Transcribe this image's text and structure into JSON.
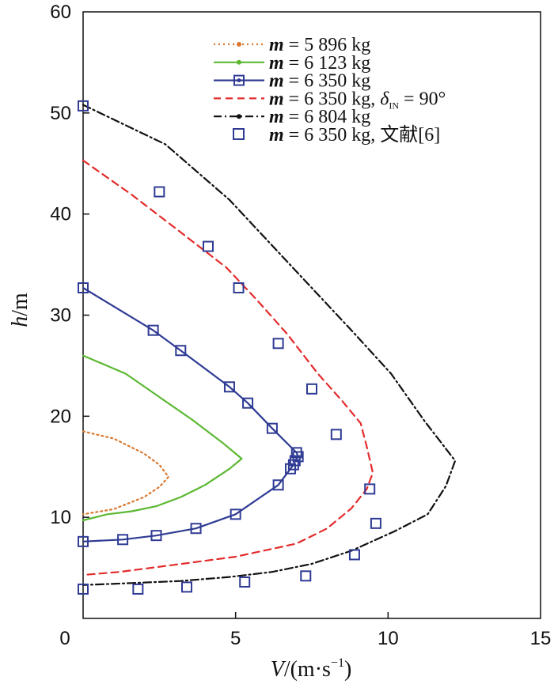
{
  "chart_data": {
    "type": "line",
    "xlabel_parts": [
      "V",
      "/(m·s",
      "−1",
      ")"
    ],
    "ylabel_parts": [
      "h",
      "/m"
    ],
    "xlim": [
      0,
      15
    ],
    "ylim": [
      0,
      60
    ],
    "xticks": [
      "0",
      "5",
      "10",
      "15"
    ],
    "yticks": [
      "10",
      "20",
      "30",
      "40",
      "50",
      "60"
    ],
    "grid": false,
    "legend_position": "top-right",
    "series": [
      {
        "legend": {
          "m": "m",
          "eq": " = 5 896 kg",
          "delta": "",
          "sub": "",
          "deg": ""
        },
        "color": "#d9782f",
        "style": "dotted",
        "marker": "dot",
        "x": [
          0.0,
          1.0,
          2.0,
          2.5,
          2.8,
          2.5,
          2.0,
          1.0,
          0.0
        ],
        "y": [
          18.5,
          17.8,
          16.3,
          15.2,
          14.0,
          13.0,
          12.0,
          10.8,
          10.3
        ]
      },
      {
        "legend": {
          "m": "m",
          "eq": " = 6 123 kg",
          "delta": "",
          "sub": "",
          "deg": ""
        },
        "color": "#5cb832",
        "style": "solid",
        "marker": "dot",
        "x": [
          0.0,
          1.4,
          2.5,
          3.6,
          4.6,
          5.0,
          5.2,
          4.8,
          4.0,
          3.2,
          2.4,
          1.6,
          0.8,
          0.0
        ],
        "y": [
          26.0,
          24.2,
          21.9,
          19.6,
          17.3,
          16.3,
          15.8,
          14.8,
          13.2,
          12.0,
          11.1,
          10.6,
          10.3,
          9.7
        ],
        "no_markers": true
      },
      {
        "legend": {
          "m": "m",
          "eq": " = 6 350 kg",
          "delta": "",
          "sub": "",
          "deg": ""
        },
        "color": "#2f3b94",
        "style": "solid",
        "marker": "square-dot",
        "x": [
          0.0,
          2.3,
          3.2,
          4.8,
          5.4,
          6.2,
          7.0,
          7.05,
          6.95,
          6.9,
          6.8,
          6.4,
          5.0,
          3.7,
          2.4,
          1.3,
          0.0
        ],
        "y": [
          32.7,
          28.5,
          26.5,
          22.9,
          21.3,
          18.8,
          16.4,
          16.0,
          15.6,
          15.2,
          14.8,
          13.2,
          10.3,
          8.9,
          8.2,
          7.8,
          7.6
        ],
        "no_markers": false
      },
      {
        "legend": {
          "m": "m",
          "eq": " = 6 350 kg, ",
          "delta": "δ",
          "sub": "IN",
          "deg": " = 90°"
        },
        "color": "#e32b2b",
        "style": "dashed",
        "marker": "none",
        "x": [
          0.0,
          1.6,
          3.2,
          4.7,
          5.7,
          6.7,
          7.7,
          8.5,
          9.1,
          9.3,
          9.5,
          9.3,
          8.8,
          8.0,
          7.0,
          5.0,
          3.0,
          1.2,
          0.0
        ],
        "y": [
          45.3,
          41.9,
          38.2,
          34.7,
          31.5,
          28.1,
          24.2,
          21.5,
          19.3,
          17.0,
          14.4,
          12.8,
          10.9,
          8.9,
          7.4,
          6.1,
          5.3,
          4.6,
          4.3
        ]
      },
      {
        "legend": {
          "m": "m",
          "eq": " = 6 804 kg",
          "delta": "",
          "sub": "",
          "deg": ""
        },
        "color": "#111111",
        "style": "dashdot",
        "marker": "dot",
        "x": [
          0.0,
          2.7,
          4.8,
          7.0,
          8.8,
          10.1,
          11.2,
          12.2,
          11.9,
          11.3,
          10.2,
          8.8,
          7.5,
          6.2,
          4.8,
          3.2,
          1.6,
          0.0
        ],
        "y": [
          50.8,
          46.9,
          41.4,
          34.3,
          28.5,
          24.2,
          19.5,
          15.6,
          13.1,
          10.3,
          8.6,
          6.7,
          5.4,
          4.6,
          4.1,
          3.7,
          3.5,
          3.3
        ],
        "no_markers": true
      },
      {
        "legend": {
          "m": "m",
          "eq": " = 6 350 kg, ",
          "delta": "",
          "sub": "",
          "deg": "",
          "cn": "文献[6]"
        },
        "color": "#2f3b94",
        "style": "none",
        "marker": "square",
        "x": [
          0.0,
          2.5,
          4.1,
          5.1,
          6.4,
          7.5,
          8.3,
          9.4,
          9.6,
          8.9,
          7.3,
          5.3,
          3.4,
          1.8,
          0.0
        ],
        "y": [
          50.7,
          42.2,
          36.8,
          32.7,
          27.2,
          22.7,
          18.2,
          12.8,
          9.4,
          6.3,
          4.2,
          3.6,
          3.1,
          2.9,
          2.9
        ]
      }
    ]
  }
}
